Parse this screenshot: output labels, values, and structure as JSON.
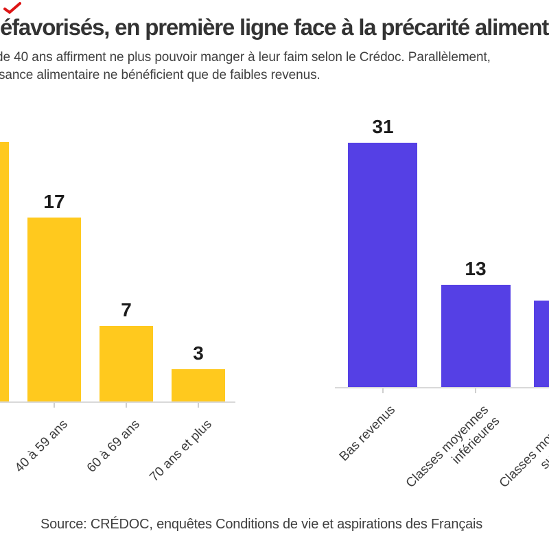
{
  "header": {
    "brand_mark_color": "#dd1414",
    "title": "défavorisés, en première ligne face à la précarité alimentaire",
    "subtitle_line1": "de 40 ans affirment ne plus pouvoir manger à leur faim selon le Crédoc. Parallèlement,",
    "subtitle_line2": "sance alimentaire ne bénéficient que de faibles revenus."
  },
  "footer": {
    "source": "Source: CRÉDOC, enquêtes Conditions de vie et aspirations des Français"
  },
  "chart_data": [
    {
      "type": "bar",
      "panel": "ages",
      "bar_color": "#ffc91e",
      "categories": [
        "",
        "40 à 59 ans",
        "60 à 69 ans",
        "70 ans et plus"
      ],
      "category_lines": [
        [],
        [
          "40 à 59 ans"
        ],
        [
          "60 à 69 ans"
        ],
        [
          "70 ans et plus"
        ]
      ],
      "values": [
        24,
        17,
        7,
        3
      ],
      "value_labels": [
        "",
        "17",
        "7",
        "3"
      ],
      "first_bar_cropped_left": true,
      "title": "",
      "xlabel": "",
      "ylabel": "",
      "ylim": [
        0,
        33
      ],
      "grid": false,
      "legend": false
    },
    {
      "type": "bar",
      "panel": "income",
      "bar_color": "#5540e5",
      "categories": [
        "Bas revenus",
        "Classes moyennes inférieures",
        "Classes moyennes supérieures"
      ],
      "category_lines": [
        [
          "Bas revenus"
        ],
        [
          "Classes moyennes",
          "inférieures"
        ],
        [
          "Classes moyennes",
          "supérieures"
        ]
      ],
      "values": [
        31,
        13,
        11
      ],
      "value_labels": [
        "31",
        "13",
        ""
      ],
      "last_bar_cropped_right": true,
      "title": "",
      "xlabel": "",
      "ylabel": "",
      "ylim": [
        0,
        33
      ],
      "grid": false,
      "legend": false
    }
  ]
}
